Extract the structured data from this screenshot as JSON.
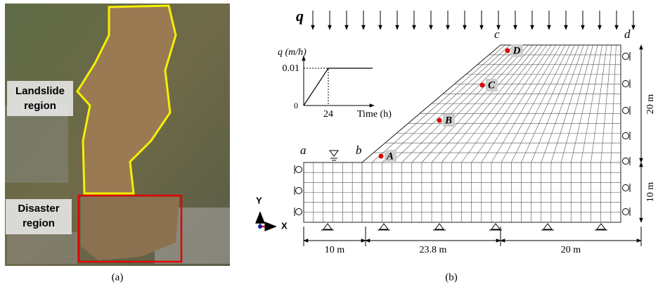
{
  "panel_a": {
    "labels": {
      "landslide": [
        "Landslide",
        "region"
      ],
      "disaster": [
        "Disaster",
        "region"
      ]
    },
    "caption": "(a)"
  },
  "panel_b": {
    "load": "q",
    "inset": {
      "y_label": "q (m/h)",
      "y_value": "0.01",
      "origin": "0",
      "x_value": "24",
      "x_label": "Time (h)"
    },
    "corners": [
      "a",
      "b",
      "c",
      "d"
    ],
    "points": [
      "A",
      "B",
      "C",
      "D"
    ],
    "axes": [
      "Y",
      "X"
    ],
    "dimensions": {
      "bottom": [
        "10 m",
        "23.8 m",
        "20 m"
      ],
      "right": [
        "20 m",
        "10 m"
      ]
    },
    "caption": "(b)"
  }
}
